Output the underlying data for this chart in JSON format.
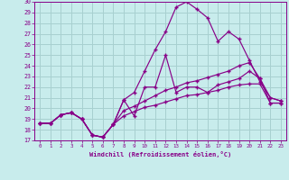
{
  "xlabel": "Windchill (Refroidissement éolien,°C)",
  "bg_color": "#c8ecec",
  "grid_color": "#a8d0d0",
  "line_color": "#880088",
  "xlim": [
    -0.5,
    23.5
  ],
  "ylim": [
    17,
    30
  ],
  "xticks": [
    0,
    1,
    2,
    3,
    4,
    5,
    6,
    7,
    8,
    9,
    10,
    11,
    12,
    13,
    14,
    15,
    16,
    17,
    18,
    19,
    20,
    21,
    22,
    23
  ],
  "yticks": [
    17,
    18,
    19,
    20,
    21,
    22,
    23,
    24,
    25,
    26,
    27,
    28,
    29,
    30
  ],
  "line_top_x": [
    0,
    1,
    2,
    3,
    4,
    5,
    6,
    7,
    8,
    9,
    10,
    11,
    12,
    13,
    14,
    15,
    16,
    17,
    18,
    19,
    20,
    21,
    22,
    23
  ],
  "line_top_y": [
    18.6,
    18.6,
    19.4,
    19.6,
    19.0,
    17.5,
    17.3,
    18.5,
    20.8,
    21.5,
    23.5,
    25.5,
    27.2,
    29.5,
    30.0,
    29.3,
    28.5,
    26.3,
    27.2,
    26.5,
    24.5,
    22.5,
    21.0,
    20.7
  ],
  "line_wavy_x": [
    0,
    1,
    2,
    3,
    4,
    5,
    6,
    7,
    8,
    9,
    10,
    11,
    12,
    13,
    14,
    15,
    16,
    17,
    18,
    19,
    20,
    21,
    22,
    23
  ],
  "line_wavy_y": [
    18.6,
    18.6,
    19.4,
    19.6,
    19.0,
    17.5,
    17.3,
    18.5,
    20.8,
    19.3,
    22.0,
    22.0,
    25.0,
    21.5,
    22.0,
    22.0,
    21.5,
    22.2,
    22.5,
    22.8,
    23.5,
    22.8,
    20.5,
    20.5
  ],
  "line_mid_x": [
    0,
    1,
    2,
    3,
    4,
    5,
    6,
    7,
    8,
    9,
    10,
    11,
    12,
    13,
    14,
    15,
    16,
    17,
    18,
    19,
    20,
    21,
    22,
    23
  ],
  "line_mid_y": [
    18.6,
    18.6,
    19.4,
    19.6,
    19.0,
    17.5,
    17.3,
    18.5,
    19.8,
    20.2,
    20.7,
    21.2,
    21.7,
    22.0,
    22.4,
    22.6,
    22.9,
    23.2,
    23.5,
    24.0,
    24.3,
    22.8,
    21.0,
    20.7
  ],
  "line_bot_x": [
    0,
    1,
    2,
    3,
    4,
    5,
    6,
    7,
    8,
    9,
    10,
    11,
    12,
    13,
    14,
    15,
    16,
    17,
    18,
    19,
    20,
    21,
    22,
    23
  ],
  "line_bot_y": [
    18.6,
    18.6,
    19.4,
    19.6,
    19.0,
    17.5,
    17.3,
    18.5,
    19.3,
    19.7,
    20.1,
    20.3,
    20.6,
    20.9,
    21.2,
    21.3,
    21.5,
    21.7,
    22.0,
    22.2,
    22.3,
    22.3,
    20.5,
    20.5
  ]
}
